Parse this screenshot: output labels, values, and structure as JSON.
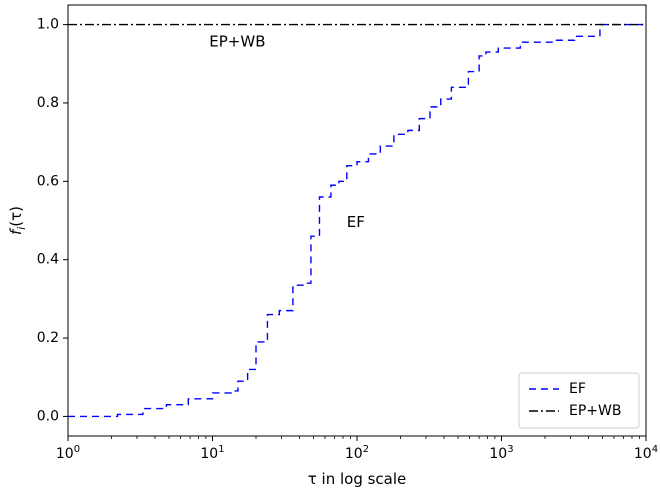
{
  "chart_data": {
    "type": "line",
    "xscale": "log",
    "xlim": [
      1,
      10000
    ],
    "ylim": [
      -0.05,
      1.05
    ],
    "xlabel": "τ in log scale",
    "ylabel": "f_i(τ)",
    "ylabel_main": "f",
    "ylabel_sub": "i",
    "ylabel_rest": "(τ)",
    "grid": false,
    "legend_position": "lower-right",
    "x_ticks": [
      {
        "value": 1,
        "base": "10",
        "exp": "0"
      },
      {
        "value": 10,
        "base": "10",
        "exp": "1"
      },
      {
        "value": 100,
        "base": "10",
        "exp": "2"
      },
      {
        "value": 1000,
        "base": "10",
        "exp": "3"
      },
      {
        "value": 10000,
        "base": "10",
        "exp": "4"
      }
    ],
    "y_ticks": [
      {
        "value": 0.0,
        "label": "0.0"
      },
      {
        "value": 0.2,
        "label": "0.2"
      },
      {
        "value": 0.4,
        "label": "0.4"
      },
      {
        "value": 0.6,
        "label": "0.6"
      },
      {
        "value": 0.8,
        "label": "0.8"
      },
      {
        "value": 1.0,
        "label": "1.0"
      }
    ],
    "annotations": [
      {
        "text": "EP+WB",
        "x": 9.5,
        "y": 0.955
      },
      {
        "text": "EF",
        "x": 85,
        "y": 0.495
      }
    ],
    "series": [
      {
        "name": "EF",
        "color": "#0000ff",
        "style": "dashed",
        "step": true,
        "x": [
          1,
          2.2,
          3.3,
          4.8,
          6.8,
          10,
          13.5,
          15,
          17.5,
          20,
          24,
          29,
          36,
          43,
          48,
          55,
          66,
          75,
          85,
          100,
          120,
          145,
          180,
          225,
          270,
          320,
          380,
          450,
          590,
          700,
          780,
          950,
          1350,
          2400,
          3200,
          4800,
          7000,
          10000
        ],
        "y": [
          0,
          0.005,
          0.02,
          0.03,
          0.045,
          0.06,
          0.065,
          0.09,
          0.12,
          0.19,
          0.26,
          0.27,
          0.335,
          0.34,
          0.46,
          0.56,
          0.59,
          0.6,
          0.64,
          0.65,
          0.67,
          0.69,
          0.72,
          0.73,
          0.76,
          0.79,
          0.81,
          0.84,
          0.88,
          0.92,
          0.93,
          0.94,
          0.955,
          0.96,
          0.97,
          1.0,
          1.0,
          1.0
        ]
      },
      {
        "name": "EP+WB",
        "color": "#000000",
        "style": "dashdot",
        "step": false,
        "x": [
          1,
          10000
        ],
        "y": [
          1.0,
          1.0
        ]
      }
    ]
  }
}
